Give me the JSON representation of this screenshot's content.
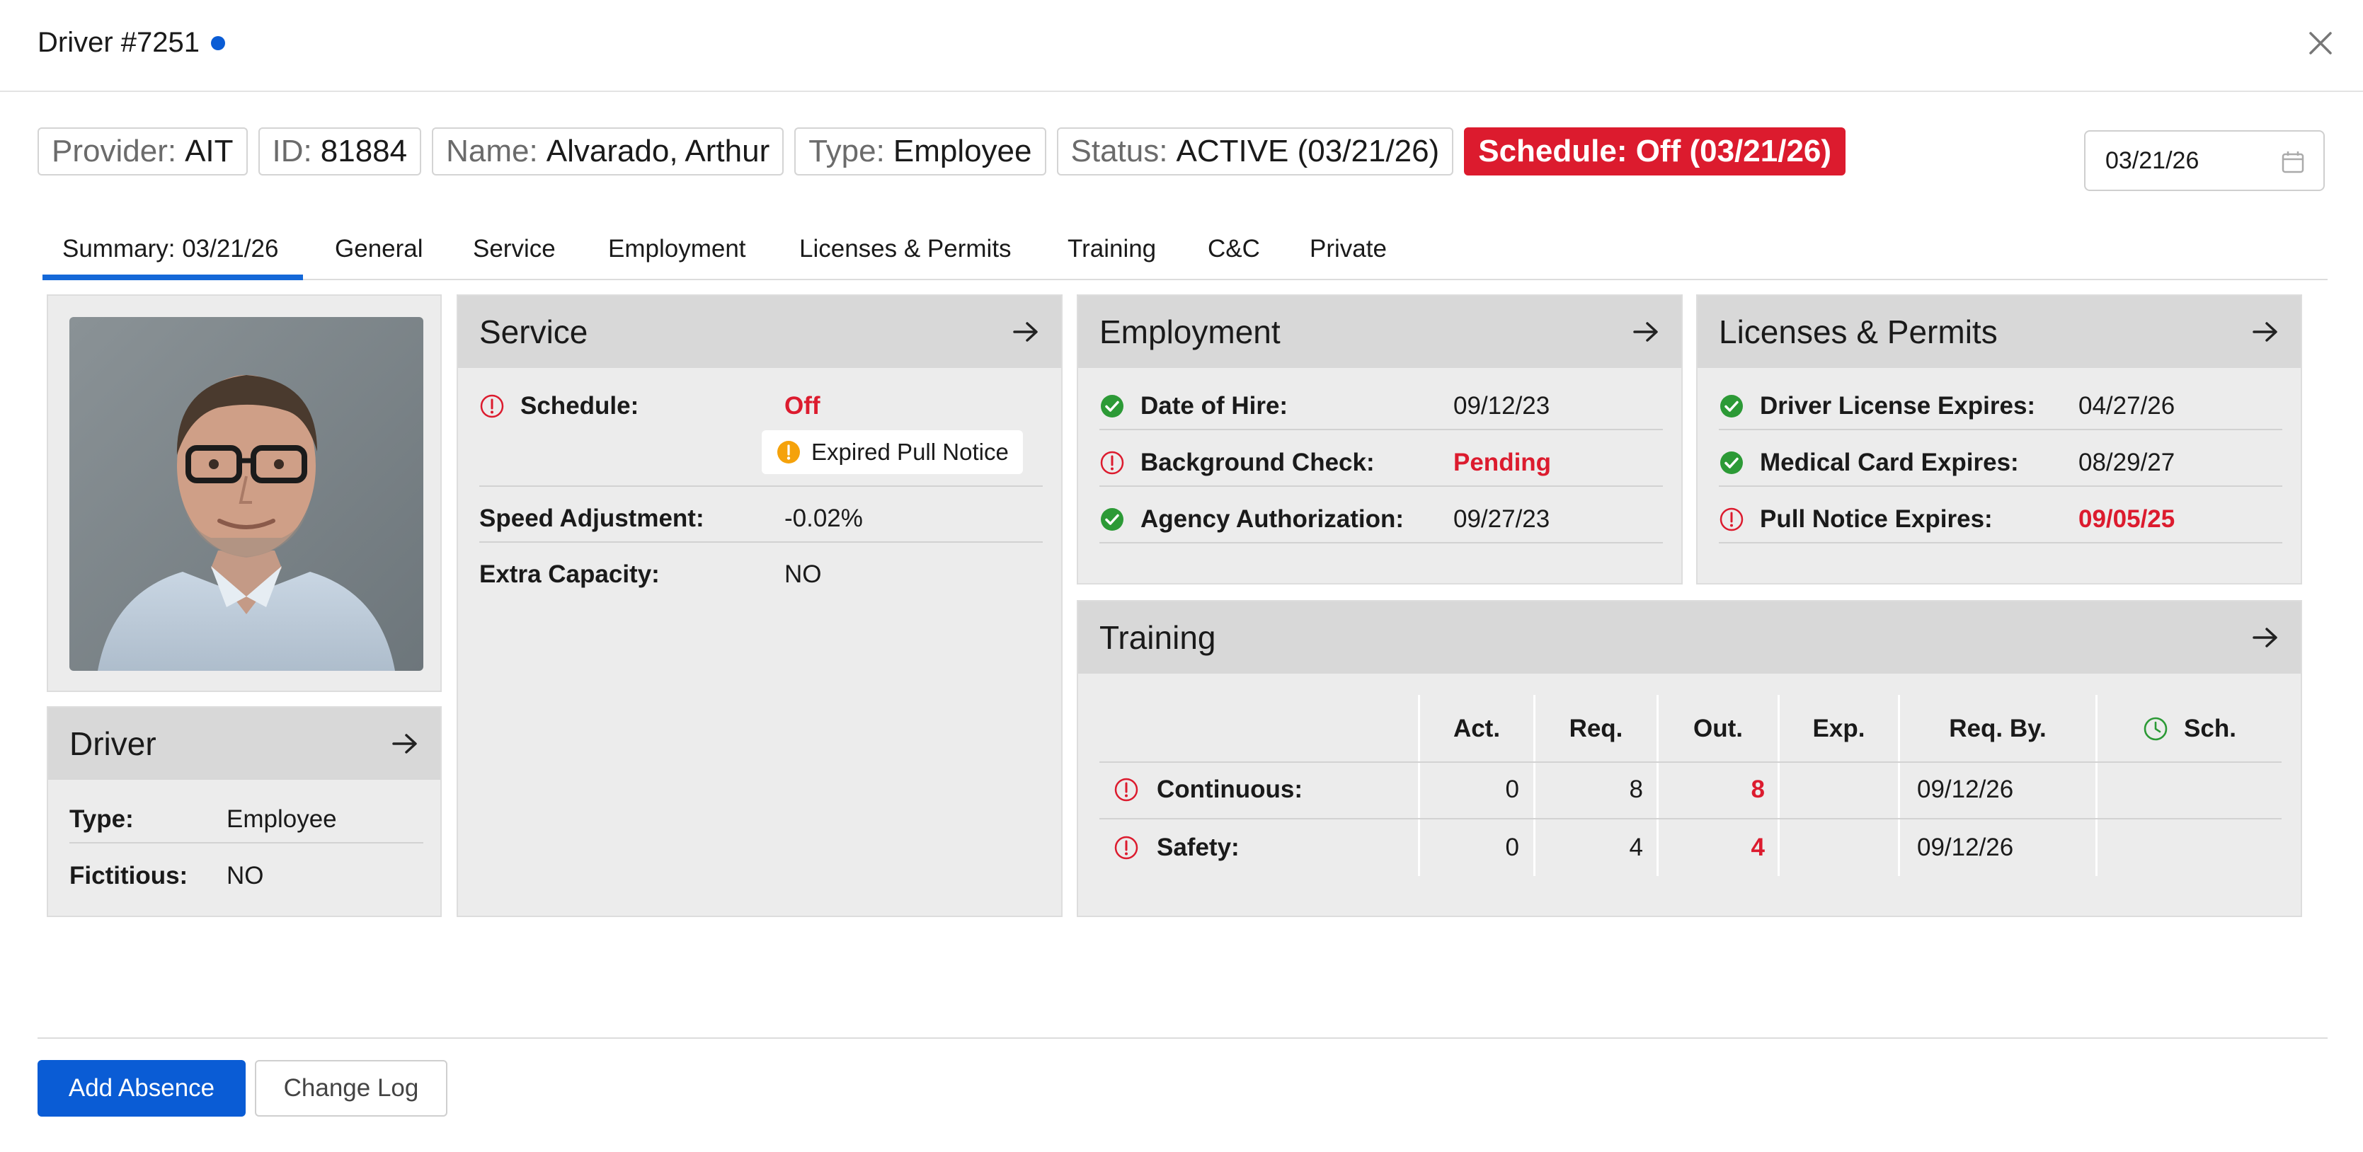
{
  "header": {
    "title": "Driver #7251"
  },
  "chips": {
    "provider_label": "Provider:",
    "provider": "AIT",
    "id_label": "ID:",
    "id": "81884",
    "name_label": "Name:",
    "name": "Alvarado, Arthur",
    "type_label": "Type:",
    "type": "Employee",
    "status_label": "Status:",
    "status": "ACTIVE (03/21/26)",
    "schedule": "Schedule: Off (03/21/26)"
  },
  "date_picker": {
    "value": "03/21/26"
  },
  "tabs": [
    "Summary: 03/21/26",
    "General",
    "Service",
    "Employment",
    "Licenses & Permits",
    "Training",
    "C&C",
    "Private"
  ],
  "driver_panel": {
    "title": "Driver",
    "rows": [
      {
        "label": "Type:",
        "value": "Employee"
      },
      {
        "label": "Fictitious:",
        "value": "NO"
      }
    ]
  },
  "service_panel": {
    "title": "Service",
    "rows": [
      {
        "label": "Schedule:",
        "value": "Off",
        "status": "error"
      },
      {
        "label": "Speed Adjustment:",
        "value": "-0.02%"
      },
      {
        "label": "Extra Capacity:",
        "value": "NO"
      }
    ],
    "notice": "Expired Pull Notice"
  },
  "employment_panel": {
    "title": "Employment",
    "rows": [
      {
        "label": "Date of Hire:",
        "value": "09/12/23",
        "status": "ok"
      },
      {
        "label": "Background Check:",
        "value": "Pending",
        "status": "error"
      },
      {
        "label": "Agency Authorization:",
        "value": "09/27/23",
        "status": "ok"
      }
    ]
  },
  "licenses_panel": {
    "title": "Licenses & Permits",
    "rows": [
      {
        "label": "Driver License Expires:",
        "value": "04/27/26",
        "status": "ok"
      },
      {
        "label": "Medical Card Expires:",
        "value": "08/29/27",
        "status": "ok"
      },
      {
        "label": "Pull Notice Expires:",
        "value": "09/05/25",
        "status": "error"
      }
    ]
  },
  "training_panel": {
    "title": "Training",
    "columns": [
      "Act.",
      "Req.",
      "Out.",
      "Exp.",
      "Req. By.",
      "Sch."
    ],
    "rows": [
      {
        "label": "Continuous:",
        "act": "0",
        "req": "8",
        "out": "8",
        "exp": "",
        "req_by": "09/12/26",
        "sch": ""
      },
      {
        "label": "Safety:",
        "act": "0",
        "req": "4",
        "out": "4",
        "exp": "",
        "req_by": "09/12/26",
        "sch": ""
      }
    ]
  },
  "footer": {
    "add_absence": "Add Absence",
    "change_log": "Change Log"
  },
  "colors": {
    "accent": "#0a5cd5",
    "error": "#dc1b2e",
    "ok": "#2c9a36",
    "warning": "#f5a20b"
  }
}
